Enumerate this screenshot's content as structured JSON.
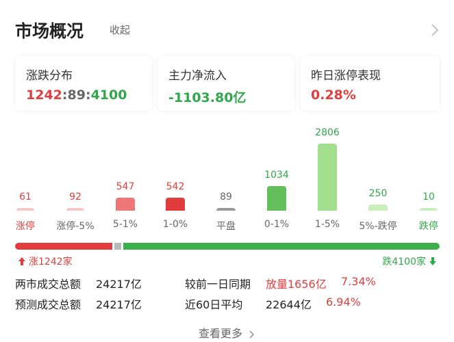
{
  "header": {
    "title": "市场概况",
    "collapse_label": "收起"
  },
  "cards": {
    "distribution": {
      "label": "涨跌分布",
      "up": "1242",
      "sep1": ":",
      "flat": "89",
      "sep2": ":",
      "down": "4100"
    },
    "inflow": {
      "label": "主力净流入",
      "value": "-1103.80亿"
    },
    "limitup": {
      "label": "昨日涨停表现",
      "value": "0.28%"
    }
  },
  "chart_data": {
    "type": "bar",
    "categories": [
      "涨停",
      "涨停-5%",
      "5-1%",
      "1-0%",
      "平盘",
      "0-1%",
      "1-5%",
      "5%-跌停",
      "跌停"
    ],
    "values": [
      61,
      92,
      547,
      542,
      89,
      1034,
      2806,
      250,
      10
    ],
    "colors": [
      "#f6c9c9",
      "#f6c9c9",
      "#ef7777",
      "#e23d3d",
      "#999999",
      "#62bf5b",
      "#a1df8f",
      "#c8efbd",
      "#c8efbd"
    ],
    "label_colors": [
      "#e23d3d",
      "#666666",
      "#666666",
      "#666666",
      "#666666",
      "#666666",
      "#666666",
      "#666666",
      "#2fa84a"
    ],
    "value_colors": [
      "#e23d3d",
      "#e23d3d",
      "#e23d3d",
      "#e23d3d",
      "#666666",
      "#2fa84a",
      "#2fa84a",
      "#2fa84a",
      "#2fa84a"
    ]
  },
  "breadth": {
    "up_label": "涨1242家",
    "down_label": "跌4100家",
    "up": 1242,
    "flat": 89,
    "down": 4100
  },
  "stats": {
    "row1": {
      "label": "两市成交总额",
      "value": "24217亿",
      "label2": "较前一日同期",
      "change": "放量1656亿",
      "pct": "7.34%"
    },
    "row2": {
      "label": "预测成交总额",
      "value": "24217亿",
      "label2": "近60日平均",
      "avg": "22644亿",
      "pct": "6.94%"
    }
  },
  "more": {
    "label": "查看更多"
  },
  "colors": {
    "red": "#e23d3d",
    "green": "#2fa84a",
    "grey": "#b9b9b9"
  }
}
